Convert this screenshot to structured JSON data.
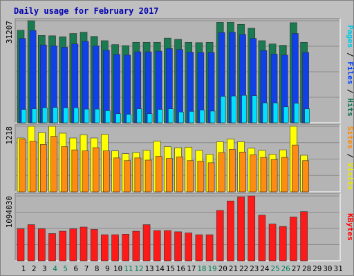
{
  "title": "Daily usage for February 2017",
  "chart_data": [
    {
      "type": "bar",
      "panel": "top",
      "ymax_label": "31207",
      "right_labels": [
        {
          "text": "Pages",
          "color": "#00c8e8"
        },
        {
          "text": "Files",
          "color": "#0040ff"
        },
        {
          "text": "Hits",
          "color": "#107050"
        }
      ],
      "separator": " / ",
      "series": [
        {
          "name": "Hits",
          "color": "#1a7a50",
          "values": [
            28300,
            31207,
            26700,
            26600,
            26300,
            27300,
            27700,
            26400,
            25100,
            23900,
            23600,
            24600,
            24600,
            24600,
            25900,
            25500,
            24600,
            24500,
            24600,
            30700,
            30700,
            30100,
            28900,
            25100,
            24100,
            23700,
            30600,
            24600,
            0,
            0,
            0
          ]
        },
        {
          "name": "Files",
          "color": "#1040e8",
          "values": [
            25800,
            28200,
            23800,
            23500,
            23100,
            24100,
            24900,
            23500,
            22200,
            20900,
            20700,
            21700,
            21700,
            21900,
            22700,
            22400,
            21600,
            21500,
            21500,
            27600,
            27700,
            27000,
            25800,
            22100,
            21000,
            20700,
            27300,
            21500,
            0,
            0,
            0
          ]
        },
        {
          "name": "Pages",
          "color": "#00e0ff",
          "values": [
            4100,
            4300,
            4600,
            4700,
            4600,
            4600,
            4200,
            4200,
            3700,
            2800,
            2600,
            4300,
            2800,
            4100,
            4300,
            3300,
            3500,
            3900,
            3600,
            8100,
            8200,
            8400,
            8300,
            6100,
            6100,
            4900,
            6000,
            4300,
            0,
            0,
            0
          ]
        }
      ]
    },
    {
      "type": "bar",
      "panel": "middle",
      "ymax_label": "1218",
      "right_labels": [
        {
          "text": "Sites",
          "color": "#ff8800"
        },
        {
          "text": "Visits",
          "color": "#e8e800"
        }
      ],
      "separator": " / ",
      "series": [
        {
          "name": "Visits",
          "color": "#ffff00",
          "values": [
            1000,
            1218,
            1100,
            1218,
            1090,
            1000,
            1060,
            1000,
            1070,
            760,
            710,
            730,
            770,
            940,
            840,
            820,
            830,
            770,
            700,
            930,
            980,
            930,
            810,
            770,
            700,
            780,
            1218,
            680,
            0,
            0,
            0
          ]
        },
        {
          "name": "Sites",
          "color": "#ff8c10",
          "values": [
            980,
            940,
            880,
            1030,
            840,
            780,
            760,
            820,
            760,
            630,
            580,
            630,
            590,
            660,
            620,
            650,
            580,
            570,
            540,
            730,
            790,
            740,
            690,
            640,
            600,
            640,
            870,
            580,
            0,
            0,
            0
          ]
        }
      ]
    },
    {
      "type": "bar",
      "panel": "bottom",
      "ymax_label": "1094030",
      "right_labels": [
        {
          "text": "KBytes",
          "color": "#ff0000"
        }
      ],
      "series": [
        {
          "name": "KBytes",
          "color": "#ff1a1a",
          "values": [
            540000,
            610000,
            540000,
            460000,
            500000,
            540000,
            570000,
            530000,
            440000,
            440000,
            450000,
            500000,
            610000,
            510000,
            510000,
            490000,
            470000,
            440000,
            440000,
            850000,
            1010000,
            1080000,
            1094030,
            770000,
            620000,
            580000,
            740000,
            830000,
            0,
            0,
            0
          ]
        }
      ]
    }
  ],
  "x_axis": {
    "labels": [
      "1",
      "2",
      "3",
      "4",
      "5",
      "6",
      "7",
      "8",
      "9",
      "10",
      "11",
      "12",
      "13",
      "14",
      "15",
      "16",
      "17",
      "18",
      "19",
      "20",
      "21",
      "22",
      "23",
      "24",
      "25",
      "26",
      "27",
      "28",
      "29",
      "30",
      "31"
    ],
    "weekend_days": [
      4,
      5,
      11,
      12,
      18,
      19,
      25,
      26
    ],
    "weekday_color": "#000000",
    "weekend_color": "#00805a"
  },
  "colors": {
    "background": "#c0c0c0",
    "plot_background": "#b4b4b4",
    "title": "#0000b0",
    "axis_label": "#000080"
  }
}
